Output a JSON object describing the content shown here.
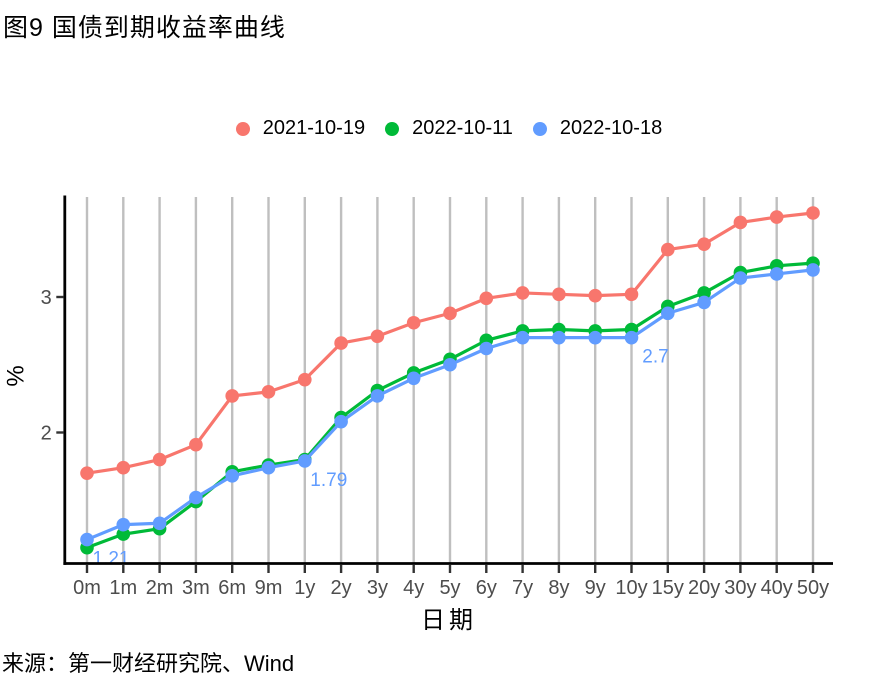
{
  "title": "图9 国债到期收益率曲线",
  "source_note": "来源：第一财经研究院、Wind",
  "chart_data": {
    "type": "line",
    "title": "图9 国债到期收益率曲线",
    "xlabel": "日期",
    "ylabel": "%",
    "categories": [
      "0m",
      "1m",
      "2m",
      "3m",
      "6m",
      "9m",
      "1y",
      "2y",
      "3y",
      "4y",
      "5y",
      "6y",
      "7y",
      "8y",
      "9y",
      "10y",
      "15y",
      "20y",
      "30y",
      "40y",
      "50y"
    ],
    "series": [
      {
        "name": "2021-10-19",
        "color": "#F8766D",
        "values": [
          1.7,
          1.74,
          1.8,
          1.91,
          2.27,
          2.3,
          2.39,
          2.66,
          2.71,
          2.81,
          2.88,
          2.99,
          3.03,
          3.02,
          3.01,
          3.02,
          3.35,
          3.39,
          3.55,
          3.59,
          3.62
        ]
      },
      {
        "name": "2022-10-11",
        "color": "#00BA38",
        "values": [
          1.15,
          1.25,
          1.29,
          1.49,
          1.71,
          1.76,
          1.8,
          2.11,
          2.31,
          2.44,
          2.54,
          2.68,
          2.75,
          2.76,
          2.75,
          2.76,
          2.93,
          3.03,
          3.18,
          3.23,
          3.25
        ]
      },
      {
        "name": "2022-10-18",
        "color": "#619CFF",
        "values": [
          1.21,
          1.32,
          1.33,
          1.52,
          1.68,
          1.74,
          1.79,
          2.08,
          2.27,
          2.4,
          2.5,
          2.62,
          2.7,
          2.7,
          2.7,
          2.7,
          2.88,
          2.96,
          3.14,
          3.17,
          3.2
        ]
      }
    ],
    "yticks": [
      2,
      3
    ],
    "ylim": [
      1.04,
      3.74
    ],
    "grid": "vertical-only",
    "legend_position": "top",
    "annotation_color": "#619CFF",
    "annotations": [
      {
        "series": "2022-10-18",
        "category": "0m",
        "text": "1.21"
      },
      {
        "series": "2022-10-18",
        "category": "1y",
        "text": "1.79"
      },
      {
        "series": "2022-10-18",
        "category": "10y",
        "text": "2.7"
      }
    ]
  }
}
